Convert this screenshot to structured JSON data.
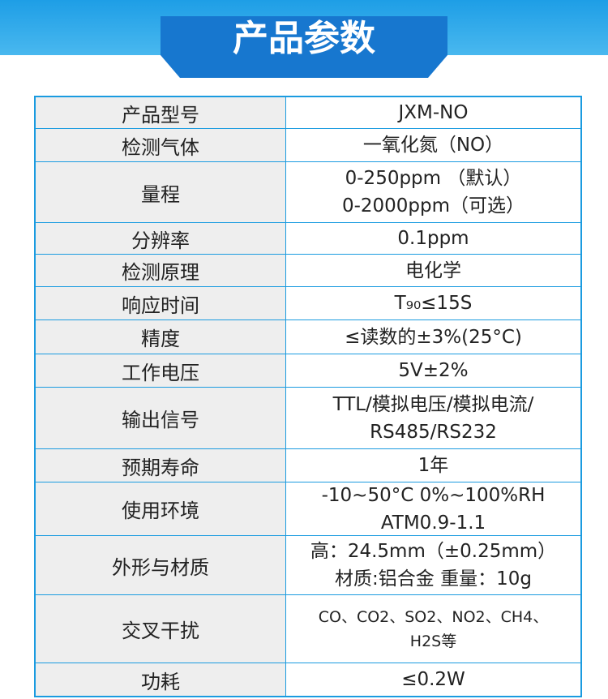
{
  "header": {
    "title": "产品参数"
  },
  "table": {
    "rows": [
      {
        "label": "产品型号",
        "value": [
          "JXM-NO"
        ]
      },
      {
        "label": "检测气体",
        "value": [
          "一氧化氮（NO）"
        ]
      },
      {
        "label": "量程",
        "value": [
          "0-250ppm （默认）",
          "0-2000ppm（可选）"
        ]
      },
      {
        "label": "分辨率",
        "value": [
          "0.1ppm"
        ]
      },
      {
        "label": "检测原理",
        "value": [
          "电化学"
        ]
      },
      {
        "label": "响应时间",
        "value": [
          "T₉₀≤15S"
        ]
      },
      {
        "label": "精度",
        "value": [
          "≤读数的±3%(25°C)"
        ]
      },
      {
        "label": "工作电压",
        "value": [
          "5V±2%"
        ]
      },
      {
        "label": "输出信号",
        "value": [
          "TTL/模拟电压/模拟电流/",
          "RS485/RS232"
        ]
      },
      {
        "label": "预期寿命",
        "value": [
          "1年"
        ]
      },
      {
        "label": "使用环境",
        "value": [
          "-10~50°C 0%~100%RH",
          "ATM0.9-1.1"
        ]
      },
      {
        "label": "外形与材质",
        "value": [
          "高：24.5mm（±0.25mm）",
          "材质:铝合金 重量：10g"
        ]
      },
      {
        "label": "交叉干扰",
        "value": [
          "CO、CO2、SO2、NO2、CH4、",
          "H2S等"
        ]
      },
      {
        "label": "功耗",
        "value": [
          "≤0.2W"
        ]
      }
    ]
  }
}
